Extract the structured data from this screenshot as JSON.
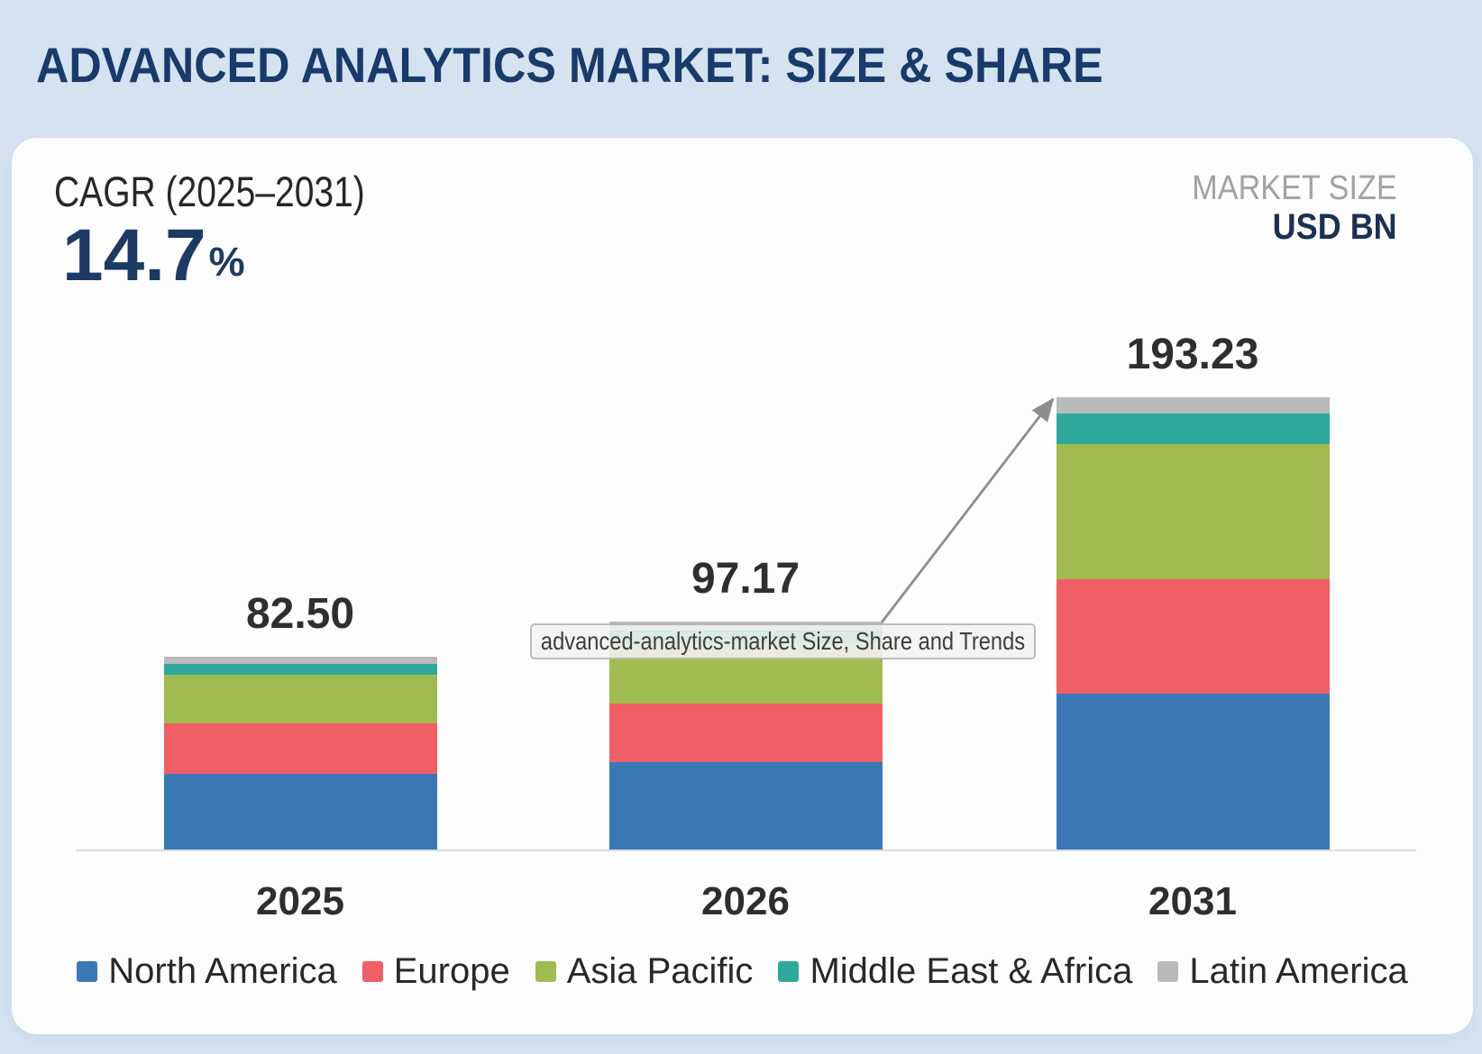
{
  "header": {
    "title": "ADVANCED ANALYTICS MARKET: SIZE & SHARE"
  },
  "card": {
    "cagr": {
      "label": "CAGR (2025–2031)",
      "value": "14.7",
      "unit": "%"
    },
    "market_size": {
      "label": "MARKET SIZE",
      "unit": "USD BN"
    }
  },
  "tooltip": {
    "text": "advanced-analytics-market Size, Share and Trends"
  },
  "chart_data": {
    "type": "bar",
    "stacked": true,
    "title": "ADVANCED ANALYTICS MARKET: SIZE & SHARE",
    "ylabel": "USD BN",
    "xlabel": "",
    "grid": false,
    "legend_position": "bottom",
    "ylim": [
      0,
      210
    ],
    "categories": [
      "2025",
      "2026",
      "2031"
    ],
    "totals": [
      82.5,
      97.17,
      193.23
    ],
    "total_labels": [
      "82.50",
      "97.17",
      "193.23"
    ],
    "series": [
      {
        "name": "North America",
        "color": "#3a78b5",
        "values": [
          32.4,
          37.4,
          66.6
        ]
      },
      {
        "name": "Europe",
        "color": "#f05f66",
        "values": [
          21.4,
          25.0,
          48.7
        ]
      },
      {
        "name": "Asia Pacific",
        "color": "#a0bb50",
        "values": [
          20.9,
          25.7,
          57.7
        ]
      },
      {
        "name": "Middle East & Africa",
        "color": "#2fa89c",
        "values": [
          4.6,
          5.4,
          13.0
        ]
      },
      {
        "name": "Latin America",
        "color": "#b9babc",
        "values": [
          3.2,
          3.67,
          7.23
        ]
      }
    ],
    "annotations": {
      "growth_arrow": {
        "from_category": "2026",
        "to_category": "2031"
      }
    }
  }
}
